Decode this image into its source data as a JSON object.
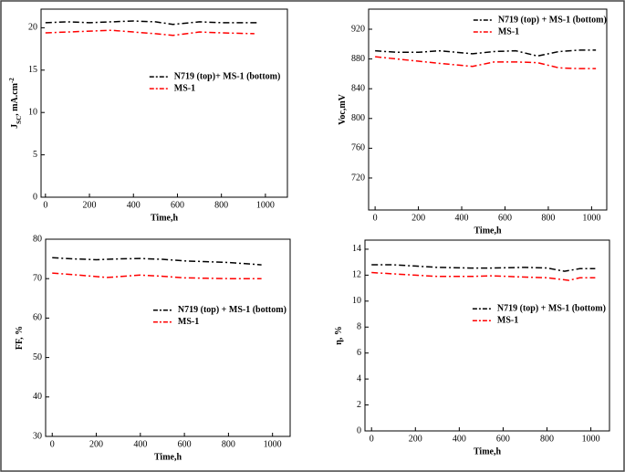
{
  "chart_data": [
    {
      "type": "line",
      "xlabel": "Time,h",
      "ylabel": [
        "J",
        "SC",
        ", mA.cm",
        "-2"
      ],
      "xlim": [
        -20,
        1100
      ],
      "xticks": [
        0,
        200,
        400,
        600,
        800,
        1000
      ],
      "ylim": [
        0,
        22.2
      ],
      "yticks": [
        0,
        5,
        10,
        15,
        20
      ],
      "legend": "center right",
      "series": [
        {
          "name": "N719 (top)+ MS-1 (bottom)",
          "color": "#000000",
          "x": [
            0,
            100,
            200,
            300,
            400,
            500,
            580,
            700,
            800,
            960
          ],
          "values": [
            20.6,
            20.7,
            20.6,
            20.7,
            20.8,
            20.7,
            20.4,
            20.7,
            20.6,
            20.6
          ]
        },
        {
          "name": "MS-1",
          "color": "#ff0000",
          "x": [
            0,
            100,
            200,
            300,
            400,
            500,
            580,
            700,
            800,
            950
          ],
          "values": [
            19.4,
            19.5,
            19.6,
            19.7,
            19.5,
            19.3,
            19.1,
            19.5,
            19.4,
            19.3
          ]
        }
      ]
    },
    {
      "type": "line",
      "xlabel": "Time,h",
      "ylabel": [
        "Voc,mV"
      ],
      "xlim": [
        -30,
        1070
      ],
      "xticks": [
        0,
        200,
        400,
        600,
        800,
        1000
      ],
      "ylim": [
        677,
        947
      ],
      "yticks": [
        720,
        760,
        800,
        840,
        880,
        920
      ],
      "legend": "upper right",
      "series": [
        {
          "name": "N719 (top) + MS-1 (bottom)",
          "color": "#000000",
          "x": [
            0,
            100,
            200,
            300,
            450,
            550,
            650,
            750,
            850,
            950,
            1020
          ],
          "values": [
            891,
            889,
            889,
            891,
            887,
            890,
            891,
            884,
            890,
            892,
            892
          ]
        },
        {
          "name": "MS-1",
          "color": "#ff0000",
          "x": [
            0,
            100,
            200,
            300,
            450,
            550,
            650,
            750,
            850,
            950,
            1020
          ],
          "values": [
            883,
            880,
            877,
            874,
            870,
            876,
            876,
            875,
            868,
            867,
            867
          ]
        }
      ]
    },
    {
      "type": "line",
      "xlabel": "Time,h",
      "ylabel": [
        "FF, %"
      ],
      "xlim": [
        -30,
        1080
      ],
      "xticks": [
        0,
        200,
        400,
        600,
        800,
        1000
      ],
      "ylim": [
        30,
        80
      ],
      "yticks": [
        30,
        40,
        50,
        60,
        70,
        80
      ],
      "legend": "center right",
      "series": [
        {
          "name": "N719 (top) + MS-1 (bottom)",
          "color": "#000000",
          "x": [
            0,
            100,
            200,
            300,
            400,
            500,
            600,
            700,
            800,
            950
          ],
          "values": [
            75.3,
            75.0,
            74.8,
            75.0,
            75.1,
            74.9,
            74.5,
            74.3,
            74.1,
            73.5
          ]
        },
        {
          "name": "MS-1",
          "color": "#ff0000",
          "x": [
            0,
            100,
            250,
            400,
            500,
            600,
            700,
            800,
            950
          ],
          "values": [
            71.4,
            71.0,
            70.3,
            70.9,
            70.6,
            70.2,
            70.1,
            70.0,
            70.0
          ]
        }
      ]
    },
    {
      "type": "line",
      "xlabel": "Time,h",
      "ylabel": [
        "η, %"
      ],
      "xlim": [
        -30,
        1085
      ],
      "xticks": [
        0,
        200,
        400,
        600,
        800,
        1000
      ],
      "ylim": [
        0,
        14.7
      ],
      "yticks": [
        0,
        2,
        4,
        6,
        8,
        10,
        12,
        14
      ],
      "legend": "center right",
      "series": [
        {
          "name": "N719 (top) + MS-1 (bottom)",
          "color": "#000000",
          "x": [
            0,
            100,
            200,
            300,
            450,
            550,
            700,
            800,
            880,
            950,
            1020
          ],
          "values": [
            12.8,
            12.8,
            12.7,
            12.6,
            12.55,
            12.55,
            12.6,
            12.55,
            12.3,
            12.5,
            12.5
          ]
        },
        {
          "name": "MS-1",
          "color": "#ff0000",
          "x": [
            0,
            100,
            200,
            300,
            450,
            550,
            700,
            800,
            900,
            950,
            1020
          ],
          "values": [
            12.2,
            12.1,
            12.0,
            11.9,
            11.9,
            11.95,
            11.85,
            11.8,
            11.6,
            11.8,
            11.8
          ]
        }
      ]
    }
  ]
}
